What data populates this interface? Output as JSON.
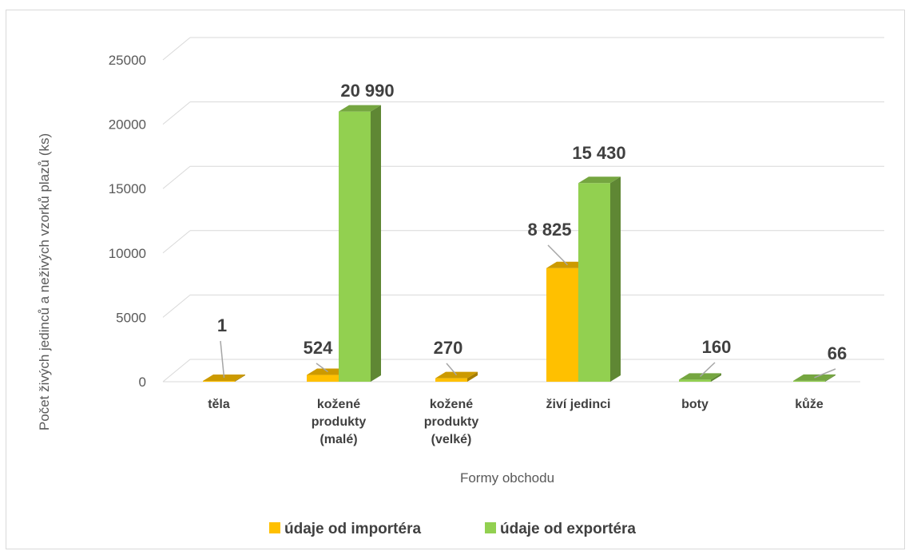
{
  "chart_data": {
    "type": "bar",
    "title": "",
    "xlabel": "Formy obchodu",
    "ylabel": "Počet živých jedinců a neživých vzorků plazů (ks)",
    "ylim": [
      0,
      25000
    ],
    "yticks": [
      0,
      5000,
      10000,
      15000,
      20000,
      25000
    ],
    "grid": true,
    "legend_position": "bottom",
    "categories": [
      [
        "těla"
      ],
      [
        "kožené",
        "produkty",
        "(malé)"
      ],
      [
        "kožené",
        "produkty",
        "(velké)"
      ],
      [
        "živí jedinci"
      ],
      [
        "boty"
      ],
      [
        "kůže"
      ]
    ],
    "series": [
      {
        "name": "údaje od importéra",
        "color": "#ffc000",
        "values": [
          1,
          524,
          270,
          8825,
          null,
          null
        ],
        "labels": [
          "1",
          "524",
          "270",
          "8 825",
          "",
          ""
        ]
      },
      {
        "name": "údaje od exportéra",
        "color": "#92d050",
        "values": [
          null,
          20990,
          null,
          15430,
          160,
          66
        ],
        "labels": [
          "",
          "20 990",
          "",
          "15 430",
          "160",
          "66"
        ]
      }
    ]
  }
}
